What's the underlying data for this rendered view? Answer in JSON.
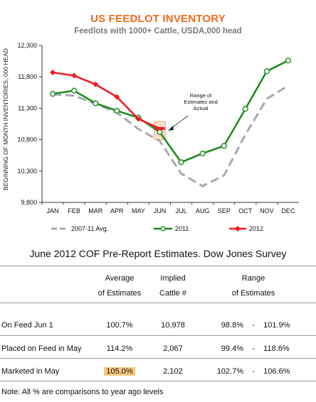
{
  "chart_data": {
    "type": "line",
    "title": "US FEEDLOT INVENTORY",
    "subtitle": "Feedlots with 1000+ Cattle, USDA,000 head",
    "ylabel": "BEGINNING OF MONTH INVENTORIES, 000 HEAD",
    "categories": [
      "JAN",
      "FEB",
      "MAR",
      "APR",
      "MAY",
      "JUN",
      "JUL",
      "AUG",
      "SEP",
      "OCT",
      "NOV",
      "DEC"
    ],
    "ylim": [
      9800,
      12300
    ],
    "yticks": [
      "9,800",
      "10,300",
      "10,800",
      "11,300",
      "11,800",
      "12,300"
    ],
    "yticks_values": [
      9800,
      10300,
      10800,
      11300,
      11800,
      12300
    ],
    "series": [
      {
        "name": "2007-11 Avg.",
        "color": "#a9a9a9",
        "style": "dashed",
        "values": [
          11520,
          11500,
          11370,
          11230,
          10970,
          10780,
          10260,
          10060,
          10230,
          10880,
          11450,
          11660
        ]
      },
      {
        "name": "2011",
        "color": "#1a8a1a",
        "style": "solid-circles",
        "values": [
          11530,
          11580,
          11380,
          11260,
          11150,
          10920,
          10440,
          10580,
          10700,
          11290,
          11890,
          12060
        ]
      },
      {
        "name": "2012",
        "color": "#ee1c25",
        "style": "solid-diamonds",
        "values": [
          11870,
          11820,
          11680,
          11480,
          11130,
          10978,
          null,
          null,
          null,
          null,
          null,
          null
        ]
      }
    ],
    "annotation": {
      "text": [
        "Range of",
        "Estimates and",
        "Actual"
      ]
    },
    "range_box": {
      "month": "JUN",
      "low": 10800,
      "high": 11090,
      "color": "#f4c2a0"
    },
    "grid": false,
    "legend_position": "bottom"
  },
  "survey": {
    "title": "June 2012 COF Pre-Report Estimates. Dow Jones Survey",
    "headers": {
      "avg_line1": "Average",
      "avg_line2": "of Estimates",
      "imp_line1": "Implied",
      "imp_line2": "Cattle #",
      "rng_line1": "Range",
      "rng_line2": "of Estimates"
    },
    "rows": [
      {
        "label": "On Feed Jun 1",
        "avg": "100.7%",
        "implied": "10,978",
        "range_low": "98.8%",
        "sep": "-",
        "range_high": "101.9%"
      },
      {
        "label": "Placed on Feed in May",
        "avg": "114.2%",
        "implied": "2,067",
        "range_low": "99.4%",
        "sep": "-",
        "range_high": "118.6%"
      },
      {
        "label": "Marketed in May",
        "avg": "105.0%",
        "implied": "2,102",
        "range_low": "102.7%",
        "sep": "-",
        "range_high": "106.6%"
      }
    ],
    "note": "Note:  All % are comparisons to year ago levels"
  }
}
